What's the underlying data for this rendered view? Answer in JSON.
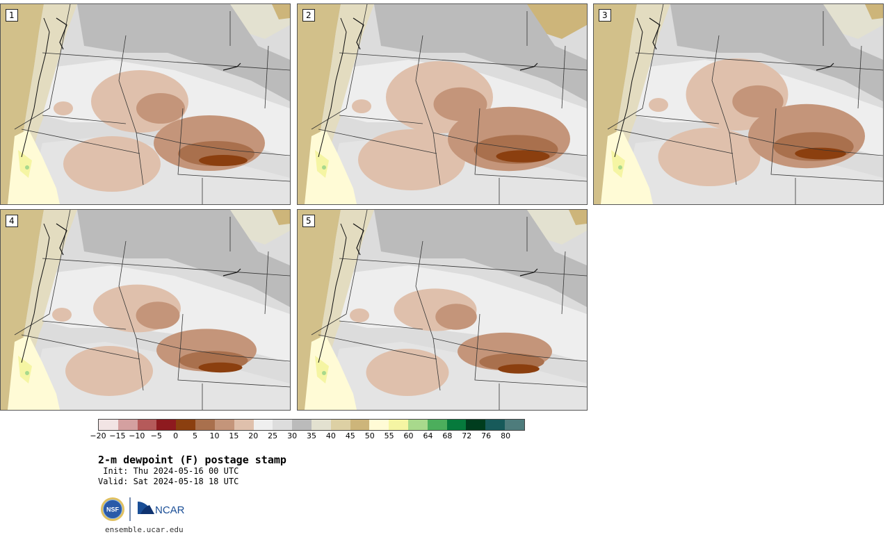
{
  "panels": [
    {
      "label": "1"
    },
    {
      "label": "2"
    },
    {
      "label": "3"
    },
    {
      "label": "4"
    },
    {
      "label": "5"
    }
  ],
  "colorbar": {
    "colors": [
      "#f2e4e4",
      "#d4a0a0",
      "#b55a5a",
      "#8e1a1f",
      "#8b3f0f",
      "#a9704d",
      "#c4957a",
      "#dfc0ac",
      "#efefef",
      "#dddddd",
      "#bbbbbb",
      "#e3e1d0",
      "#ddd0a4",
      "#cdb57a",
      "#fffbd6",
      "#f5f5a3",
      "#a8d98c",
      "#4cae5c",
      "#067a3c",
      "#003d1e",
      "#175a5a",
      "#4e7c7c"
    ],
    "ticks": [
      "−20",
      "−15",
      "−10",
      "−5",
      "0",
      "5",
      "10",
      "15",
      "20",
      "25",
      "30",
      "35",
      "40",
      "45",
      "50",
      "55",
      "60",
      "64",
      "68",
      "72",
      "76",
      "80"
    ]
  },
  "title": "2-m dewpoint (F) postage stamp",
  "init": " Init: Thu 2024-05-16 00 UTC",
  "valid": "Valid: Sat 2024-05-18 18 UTC",
  "logos": {
    "nsf": "NSF",
    "ncar": "NCAR"
  },
  "url": "ensemble.ucar.edu"
}
